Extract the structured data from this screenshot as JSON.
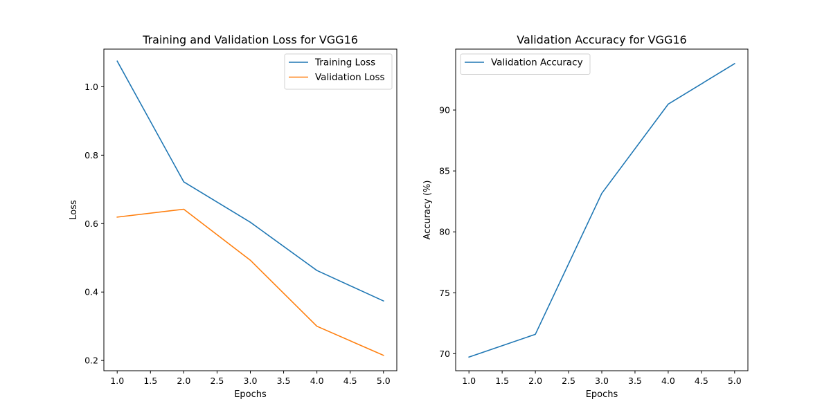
{
  "chart_data": [
    {
      "type": "line",
      "title": "Training and Validation Loss for VGG16",
      "xlabel": "Epochs",
      "ylabel": "Loss",
      "x": [
        1,
        2,
        3,
        4,
        5
      ],
      "xlim": [
        0.8,
        5.2
      ],
      "ylim": [
        0.17,
        1.11
      ],
      "xticks": [
        "1.0",
        "1.5",
        "2.0",
        "2.5",
        "3.0",
        "3.5",
        "4.0",
        "4.5",
        "5.0"
      ],
      "yticks": [
        "0.2",
        "0.4",
        "0.6",
        "0.8",
        "1.0"
      ],
      "grid": false,
      "legend_position": "top-right",
      "series": [
        {
          "name": "Training Loss",
          "color": "#1f77b4",
          "values": [
            1.075,
            0.722,
            0.604,
            0.463,
            0.374
          ]
        },
        {
          "name": "Validation Loss",
          "color": "#ff7f0e",
          "values": [
            0.619,
            0.642,
            0.493,
            0.3,
            0.215
          ]
        }
      ]
    },
    {
      "type": "line",
      "title": "Validation Accuracy for VGG16",
      "xlabel": "Epochs",
      "ylabel": "Accuracy (%)",
      "x": [
        1,
        2,
        3,
        4,
        5
      ],
      "xlim": [
        0.8,
        5.2
      ],
      "ylim": [
        68.6,
        95.0
      ],
      "xticks": [
        "1.0",
        "1.5",
        "2.0",
        "2.5",
        "3.0",
        "3.5",
        "4.0",
        "4.5",
        "5.0"
      ],
      "yticks": [
        "70",
        "75",
        "80",
        "85",
        "90"
      ],
      "grid": false,
      "legend_position": "top-left",
      "series": [
        {
          "name": "Validation Accuracy",
          "color": "#1f77b4",
          "values": [
            69.72,
            71.59,
            83.16,
            90.48,
            93.81
          ]
        }
      ]
    }
  ]
}
